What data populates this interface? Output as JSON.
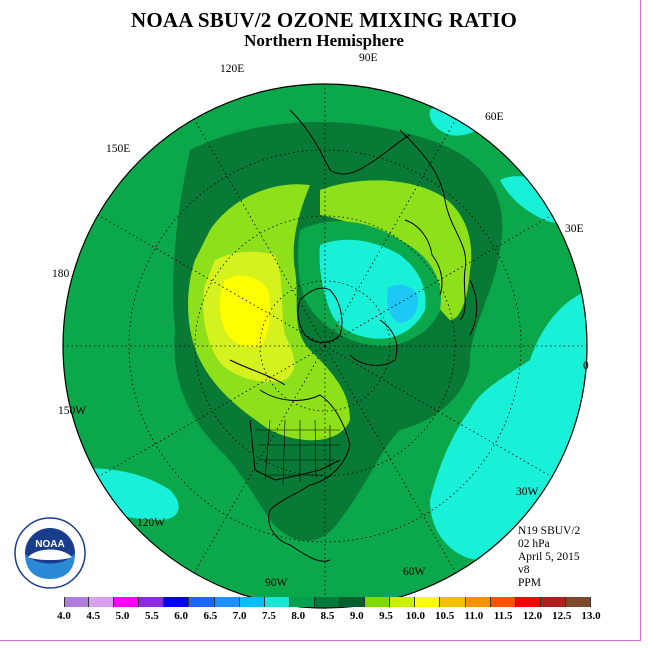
{
  "title": "NOAA SBUV/2 OZONE MIXING RATIO",
  "subtitle": "Northern Hemisphere",
  "longitude_labels": {
    "lon_90e": "90E",
    "lon_60e": "60E",
    "lon_30e": "30E",
    "lon_0": "0",
    "lon_30w": "30W",
    "lon_60w": "60W",
    "lon_90w": "90W",
    "lon_120w": "120W",
    "lon_150w": "150W",
    "lon_180": "180",
    "lon_150e": "150E",
    "lon_120e": "120E"
  },
  "meta": {
    "satellite": "N19 SBUV/2",
    "level": "02 hPa",
    "date": "April 5, 2015",
    "version": "v8",
    "units": "PPM"
  },
  "colorbar": {
    "ticks": [
      "4.0",
      "4.5",
      "5.0",
      "5.5",
      "6.0",
      "6.5",
      "7.0",
      "7.5",
      "8.0",
      "8.5",
      "9.0",
      "9.5",
      "10.0",
      "10.5",
      "11.0",
      "11.5",
      "12.0",
      "12.5",
      "13.0"
    ],
    "colors": [
      "#b07ce0",
      "#d9a0f0",
      "#ff00ff",
      "#8a2be2",
      "#0000ff",
      "#1e64ff",
      "#1e90ff",
      "#00bfff",
      "#19e6d2",
      "#00a050",
      "#007a3a",
      "#006030",
      "#7fd800",
      "#c8f000",
      "#ffff00",
      "#f0c000",
      "#ff9000",
      "#ff5000",
      "#ff0000",
      "#b02020",
      "#7a4a2a"
    ]
  },
  "map_colors": {
    "level_8_0": "#19f0d8",
    "level_8_5": "#0aa84a",
    "level_9_0": "#087a36",
    "level_9_5": "#8ee01a",
    "level_10_0": "#d6f21e",
    "level_10_5": "#ffff00",
    "level_7_5": "#1ec8f5",
    "coast": "#000000"
  },
  "logo_text": {
    "center": "NOAA"
  }
}
